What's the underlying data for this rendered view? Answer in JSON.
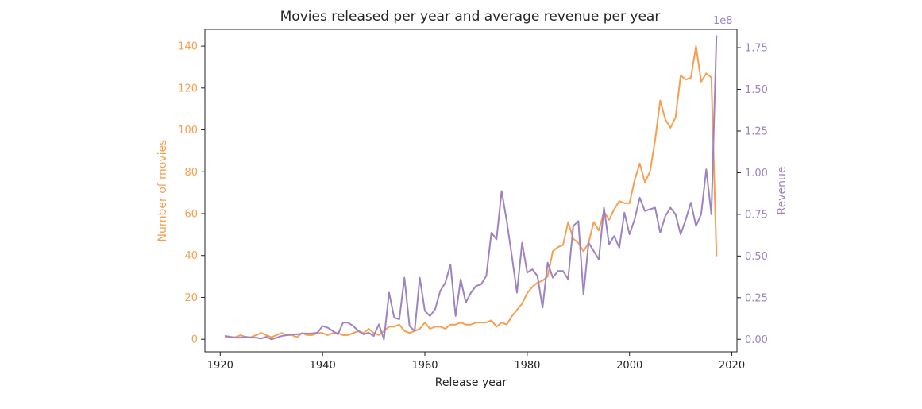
{
  "chart_data": {
    "type": "line",
    "title": "Movies released per year and average revenue per year",
    "xlabel": "Release year",
    "ylabel_left": "Number of movies",
    "ylabel_right": "Revenue",
    "right_axis_offset_text": "1e8",
    "xlim": [
      1917,
      2021
    ],
    "ylim_left": [
      -6,
      148
    ],
    "ylim_right": [
      -0.075,
      1.86
    ],
    "x_ticks": [
      1920,
      1940,
      1960,
      1980,
      2000,
      2020
    ],
    "y_ticks_left": [
      0,
      20,
      40,
      60,
      80,
      100,
      120,
      140
    ],
    "y_ticks_right": [
      0.0,
      0.25,
      0.5,
      0.75,
      1.0,
      1.25,
      1.5,
      1.75
    ],
    "y_tick_labels_right": [
      "0.00",
      "0.25",
      "0.50",
      "0.75",
      "1.00",
      "1.25",
      "1.50",
      "1.75"
    ],
    "grid": false,
    "colors": {
      "count": "#f5a050",
      "revenue": "#9e83c2",
      "frame": "#222222",
      "text": "#262626"
    },
    "x": [
      1921,
      1922,
      1923,
      1924,
      1925,
      1926,
      1927,
      1928,
      1929,
      1930,
      1931,
      1932,
      1933,
      1934,
      1935,
      1936,
      1937,
      1938,
      1939,
      1940,
      1941,
      1942,
      1943,
      1944,
      1945,
      1946,
      1947,
      1948,
      1949,
      1950,
      1951,
      1952,
      1953,
      1954,
      1955,
      1956,
      1957,
      1958,
      1959,
      1960,
      1961,
      1962,
      1963,
      1964,
      1965,
      1966,
      1967,
      1968,
      1969,
      1970,
      1971,
      1972,
      1973,
      1974,
      1975,
      1976,
      1977,
      1978,
      1979,
      1980,
      1981,
      1982,
      1983,
      1984,
      1985,
      1986,
      1987,
      1988,
      1989,
      1990,
      1991,
      1992,
      1993,
      1994,
      1995,
      1996,
      1997,
      1998,
      1999,
      2000,
      2001,
      2002,
      2003,
      2004,
      2005,
      2006,
      2007,
      2008,
      2009,
      2010,
      2011,
      2012,
      2013,
      2014,
      2015,
      2016,
      2017
    ],
    "series": [
      {
        "axis": "left",
        "color": "#f5a050",
        "values": [
          1,
          1,
          1,
          2,
          1,
          1,
          2,
          3,
          2,
          1,
          2,
          3,
          2,
          2,
          1,
          3,
          2,
          2,
          3,
          3,
          2,
          3,
          3,
          2,
          2,
          3,
          4,
          3,
          5,
          3,
          2,
          4,
          6,
          6,
          7,
          4,
          3,
          4,
          5,
          8,
          5,
          6,
          6,
          5,
          7,
          7,
          8,
          7,
          7,
          8,
          8,
          8,
          9,
          6,
          8,
          7,
          11,
          14,
          17,
          22,
          25,
          27,
          28,
          30,
          42,
          44,
          45,
          56,
          48,
          46,
          42,
          46,
          56,
          52,
          61,
          57,
          62,
          66,
          65,
          65,
          76,
          84,
          75,
          80,
          95,
          114,
          105,
          101,
          106,
          126,
          124,
          125,
          140,
          123,
          127,
          125,
          40
        ]
      },
      {
        "axis": "right",
        "color": "#9e83c2",
        "values": [
          0.02,
          0.015,
          0.01,
          0.01,
          0.015,
          0.01,
          0.01,
          0.005,
          0.015,
          0.0,
          0.01,
          0.02,
          0.025,
          0.03,
          0.03,
          0.035,
          0.035,
          0.035,
          0.04,
          0.08,
          0.07,
          0.05,
          0.03,
          0.1,
          0.1,
          0.08,
          0.05,
          0.03,
          0.04,
          0.02,
          0.09,
          0.0,
          0.28,
          0.13,
          0.12,
          0.37,
          0.08,
          0.05,
          0.37,
          0.17,
          0.14,
          0.18,
          0.29,
          0.34,
          0.45,
          0.14,
          0.36,
          0.22,
          0.28,
          0.32,
          0.33,
          0.38,
          0.64,
          0.6,
          0.89,
          0.71,
          0.5,
          0.28,
          0.58,
          0.4,
          0.42,
          0.38,
          0.19,
          0.46,
          0.37,
          0.41,
          0.41,
          0.36,
          0.68,
          0.71,
          0.27,
          0.58,
          0.53,
          0.48,
          0.79,
          0.57,
          0.62,
          0.55,
          0.76,
          0.63,
          0.72,
          0.85,
          0.77,
          0.78,
          0.79,
          0.64,
          0.74,
          0.79,
          0.75,
          0.63,
          0.72,
          0.82,
          0.68,
          0.75,
          1.02,
          0.75,
          1.82
        ]
      }
    ]
  }
}
